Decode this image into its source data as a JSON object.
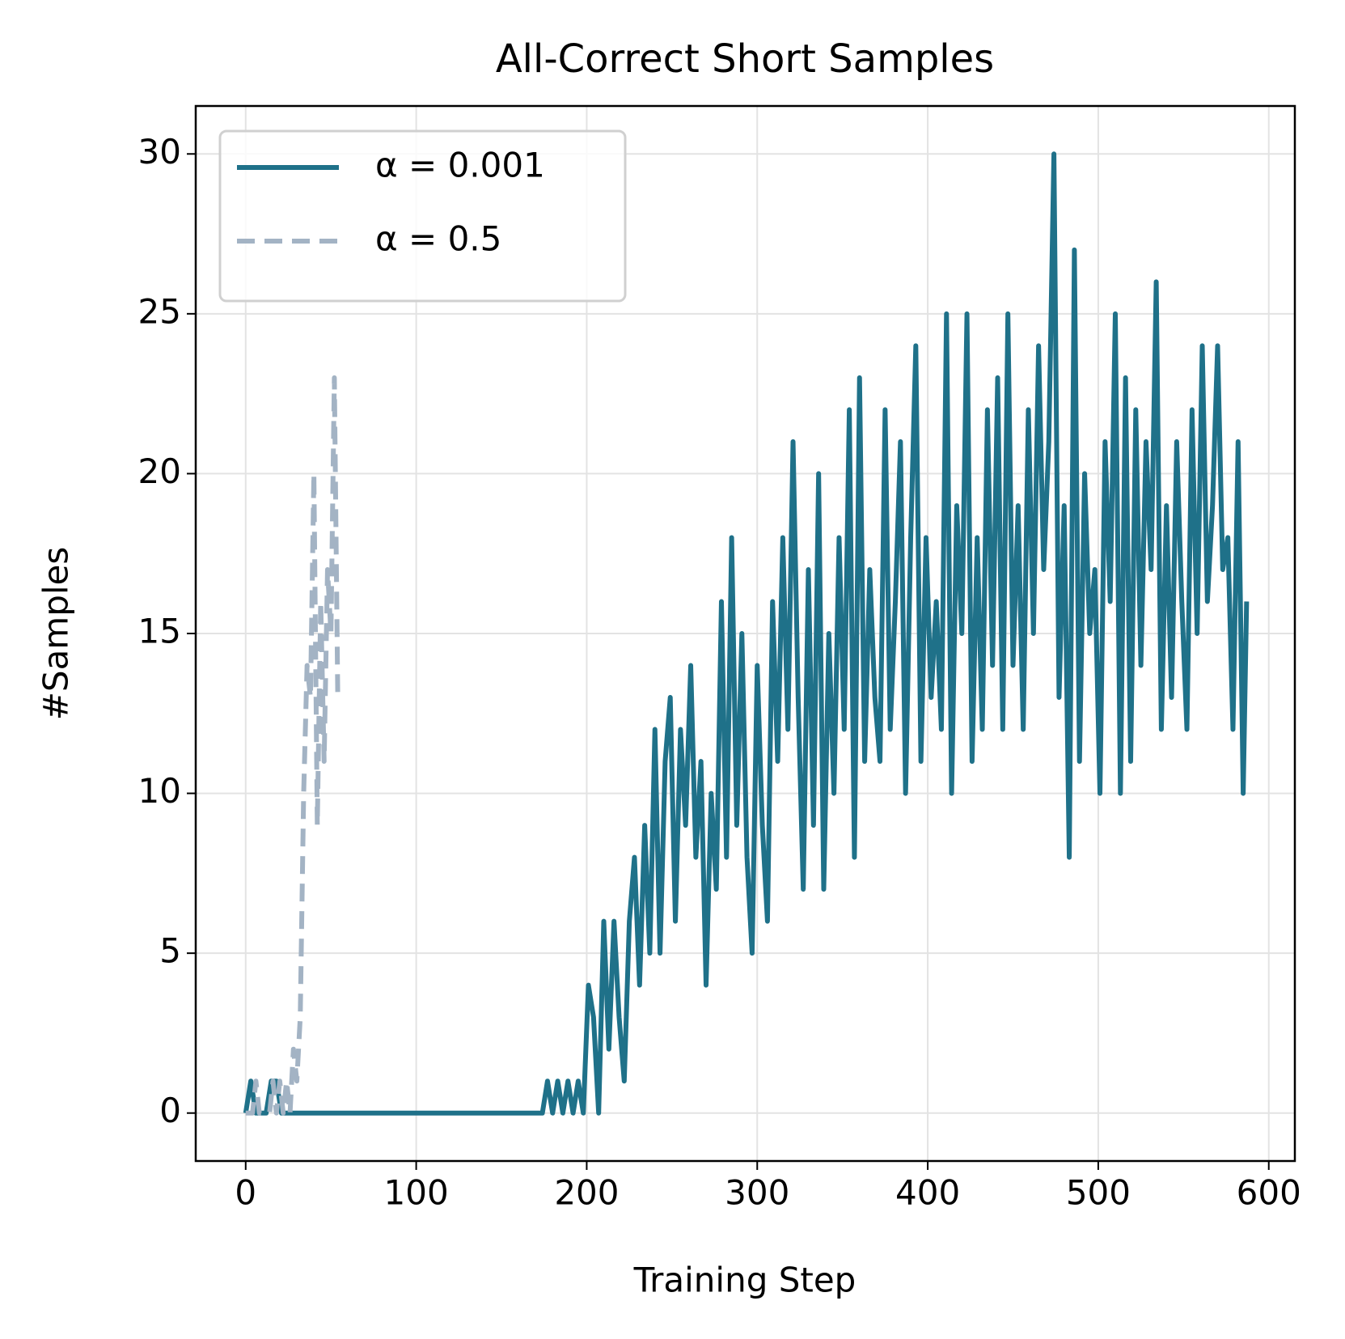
{
  "chart_data": {
    "type": "line",
    "title": "All-Correct Short Samples",
    "x_label": "Training Step",
    "y_label": "#Samples",
    "xlim": [
      -29.3,
      615.3
    ],
    "xticks": [
      0,
      100,
      200,
      300,
      400,
      500,
      600
    ],
    "ylim": [
      -1.5,
      31.5
    ],
    "yticks": [
      0,
      5,
      10,
      15,
      20,
      25,
      30
    ],
    "grid": true,
    "legend": "upper left",
    "series": [
      {
        "name": "α = 0.001",
        "color": "#1f7189",
        "dash": "solid",
        "x": [
          0,
          3,
          6,
          9,
          12,
          15,
          18,
          21,
          24,
          27,
          30,
          33,
          36,
          39,
          42,
          45,
          48,
          51,
          54,
          57,
          60,
          63,
          66,
          69,
          72,
          75,
          78,
          81,
          84,
          87,
          90,
          93,
          96,
          99,
          102,
          105,
          108,
          111,
          114,
          117,
          120,
          123,
          126,
          129,
          132,
          135,
          138,
          141,
          144,
          147,
          150,
          153,
          156,
          159,
          162,
          165,
          168,
          171,
          174,
          177,
          180,
          183,
          186,
          189,
          192,
          195,
          198,
          201,
          204,
          207,
          210,
          213,
          216,
          219,
          222,
          225,
          228,
          231,
          234,
          237,
          240,
          243,
          246,
          249,
          252,
          255,
          258,
          261,
          264,
          267,
          270,
          273,
          276,
          279,
          282,
          285,
          288,
          291,
          294,
          297,
          300,
          303,
          306,
          309,
          312,
          315,
          318,
          321,
          324,
          327,
          330,
          333,
          336,
          339,
          342,
          345,
          348,
          351,
          354,
          357,
          360,
          363,
          366,
          369,
          372,
          375,
          378,
          381,
          384,
          387,
          390,
          393,
          396,
          399,
          402,
          405,
          408,
          411,
          414,
          417,
          420,
          423,
          426,
          429,
          432,
          435,
          438,
          441,
          444,
          447,
          450,
          453,
          456,
          459,
          462,
          465,
          468,
          471,
          474,
          477,
          480,
          483,
          486,
          489,
          492,
          495,
          498,
          501,
          504,
          507,
          510,
          513,
          516,
          519,
          522,
          525,
          528,
          531,
          534,
          537,
          540,
          543,
          546,
          549,
          552,
          555,
          558,
          561,
          564,
          567,
          570,
          573,
          576,
          579,
          582,
          585,
          587
        ],
        "values": [
          0,
          1,
          0,
          0,
          0,
          1,
          1,
          0,
          0,
          0,
          0,
          0,
          0,
          0,
          0,
          0,
          0,
          0,
          0,
          0,
          0,
          0,
          0,
          0,
          0,
          0,
          0,
          0,
          0,
          0,
          0,
          0,
          0,
          0,
          0,
          0,
          0,
          0,
          0,
          0,
          0,
          0,
          0,
          0,
          0,
          0,
          0,
          0,
          0,
          0,
          0,
          0,
          0,
          0,
          0,
          0,
          0,
          0,
          0,
          1,
          0,
          1,
          0,
          1,
          0,
          1,
          0,
          4,
          3,
          0,
          6,
          2,
          6,
          3,
          1,
          6,
          8,
          4,
          9,
          5,
          12,
          5,
          11,
          13,
          6,
          12,
          9,
          14,
          8,
          11,
          4,
          10,
          7,
          16,
          8,
          18,
          9,
          15,
          8,
          5,
          14,
          9,
          6,
          16,
          11,
          18,
          12,
          21,
          13,
          7,
          17,
          9,
          20,
          7,
          15,
          10,
          18,
          12,
          22,
          8,
          23,
          11,
          17,
          13,
          11,
          22,
          12,
          16,
          21,
          10,
          18,
          24,
          11,
          18,
          13,
          16,
          12,
          25,
          10,
          19,
          15,
          25,
          11,
          18,
          12,
          22,
          14,
          23,
          12,
          25,
          14,
          19,
          12,
          22,
          15,
          24,
          17,
          21,
          30,
          13,
          19,
          8,
          27,
          11,
          20,
          15,
          17,
          10,
          21,
          16,
          25,
          10,
          23,
          11,
          22,
          14,
          21,
          17,
          26,
          12,
          19,
          13,
          21,
          16,
          12,
          22,
          15,
          24,
          16,
          19,
          24,
          17,
          18,
          12,
          21,
          10,
          16
        ]
      },
      {
        "name": "α = 0.5",
        "color": "#a3b3c4",
        "dash": "dashed",
        "x": [
          0,
          2,
          4,
          6,
          8,
          10,
          12,
          14,
          16,
          18,
          20,
          22,
          24,
          26,
          28,
          30,
          32,
          34,
          36,
          38,
          40,
          42,
          44,
          46,
          48,
          50,
          52,
          54
        ],
        "values": [
          0,
          0,
          0,
          1,
          0,
          0,
          0,
          0,
          1,
          0,
          1,
          0,
          1,
          0,
          2,
          1,
          3,
          10,
          14,
          13,
          20,
          9,
          16,
          11,
          17,
          15,
          23,
          13
        ]
      }
    ]
  }
}
